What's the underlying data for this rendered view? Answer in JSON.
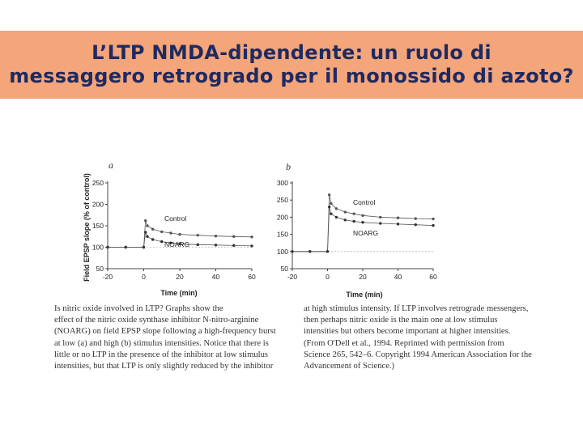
{
  "slide": {
    "title_line1": "L’LTP NMDA-dipendente: un ruolo di",
    "title_line2": "messaggero retrogrado per il monossido di azoto?"
  },
  "colors": {
    "banner": "#f4a57a",
    "title": "#1f2a60"
  },
  "figure": {
    "y_axis_label": "Field EPSP slope (% of control)",
    "x_axis_label": "Time (min)"
  },
  "chart_data": [
    {
      "type": "scatter",
      "panel": "a",
      "xlabel": "Time (min)",
      "ylabel": "Field EPSP slope (% of control)",
      "xlim": [
        -20,
        60
      ],
      "ylim": [
        50,
        250
      ],
      "x_ticks": [
        "-20",
        "0",
        "20",
        "40",
        "60"
      ],
      "y_ticks": [
        "250",
        "200",
        "150",
        "100",
        "50"
      ],
      "series": [
        {
          "name": "Control",
          "x": [
            -20,
            -10,
            0,
            1,
            2,
            5,
            10,
            15,
            20,
            30,
            40,
            50,
            60
          ],
          "y": [
            100,
            100,
            100,
            162,
            150,
            142,
            136,
            133,
            130,
            128,
            126,
            125,
            124
          ]
        },
        {
          "name": "NOARG",
          "x": [
            -20,
            -10,
            0,
            1,
            2,
            5,
            10,
            15,
            20,
            30,
            40,
            50,
            60
          ],
          "y": [
            100,
            100,
            100,
            135,
            125,
            118,
            113,
            110,
            108,
            106,
            105,
            104,
            103
          ]
        }
      ]
    },
    {
      "type": "scatter",
      "panel": "b",
      "xlabel": "Time (min)",
      "ylabel": "",
      "xlim": [
        -20,
        60
      ],
      "ylim": [
        50,
        300
      ],
      "x_ticks": [
        "-20",
        "0",
        "20",
        "40",
        "60"
      ],
      "y_ticks": [
        "300",
        "250",
        "200",
        "150",
        "100",
        "50"
      ],
      "series": [
        {
          "name": "Control",
          "x": [
            -20,
            -10,
            0,
            1,
            2,
            5,
            10,
            15,
            20,
            30,
            40,
            50,
            60
          ],
          "y": [
            100,
            100,
            100,
            265,
            240,
            225,
            215,
            210,
            205,
            200,
            198,
            196,
            195
          ]
        },
        {
          "name": "NOARG",
          "x": [
            -20,
            -10,
            0,
            1,
            2,
            5,
            10,
            15,
            20,
            30,
            40,
            50,
            60
          ],
          "y": [
            100,
            100,
            100,
            230,
            210,
            200,
            192,
            188,
            185,
            182,
            180,
            178,
            176
          ]
        }
      ]
    }
  ],
  "caption": {
    "left_lines": [
      "Is nitric oxide involved in LTP? Graphs show the",
      "effect of the nitric oxide synthase inhibitor N-nitro-arginine",
      "(NOARG) on field EPSP slope following a high-frequency burst",
      "at low (a) and high (b) stimulus intensities. Notice that there is",
      "little or no LTP in the presence of the inhibitor at low stimulus",
      "intensities, but that LTP is only slightly reduced by the inhibitor"
    ],
    "right_lines": [
      "at high stimulus intensity. If LTP involves retrograde messengers,",
      "then perhaps nitric oxide is the main one at low stimulus",
      "intensities but others become important at higher intensities.",
      "(From O'Dell et al., 1994. Reprinted with permission from",
      "Science 265, 542–6. Copyright 1994 American Association for the",
      "Advancement of Science.)"
    ]
  }
}
